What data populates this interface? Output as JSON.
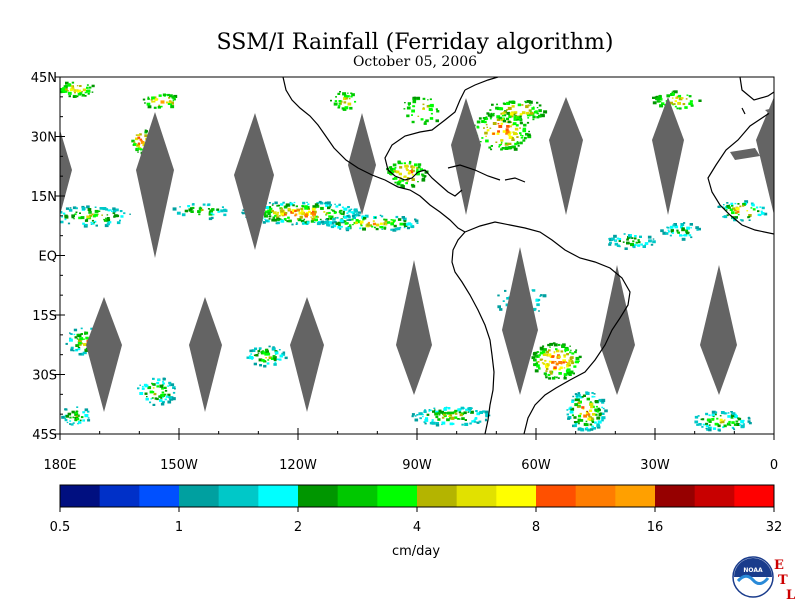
{
  "title": "SSM/I Rainfall (Ferriday algorithm)",
  "subtitle": "October 05, 2006",
  "map": {
    "lon_range": [
      -180,
      0
    ],
    "lat_range": [
      -45,
      45
    ],
    "lat_ticks": [
      {
        "value": 45,
        "label": "45N"
      },
      {
        "value": 30,
        "label": "30N"
      },
      {
        "value": 15,
        "label": "15N"
      },
      {
        "value": 0,
        "label": "EQ"
      },
      {
        "value": -15,
        "label": "15S"
      },
      {
        "value": -30,
        "label": "30S"
      },
      {
        "value": -45,
        "label": "45S"
      }
    ],
    "lon_ticks": [
      {
        "value": -180,
        "label": "180E"
      },
      {
        "value": -150,
        "label": "150W"
      },
      {
        "value": -120,
        "label": "120W"
      },
      {
        "value": -90,
        "label": "90W"
      },
      {
        "value": -60,
        "label": "60W"
      },
      {
        "value": -30,
        "label": "30W"
      },
      {
        "value": 0,
        "label": "0"
      }
    ],
    "no_data_color": "#646464",
    "coast_color": "#000000"
  },
  "colorbar": {
    "unit": "cm/day",
    "colors": [
      "#000f80",
      "#0030c8",
      "#0050ff",
      "#00a0a0",
      "#00c8c8",
      "#00ffff",
      "#009600",
      "#00c800",
      "#00ff00",
      "#b4b400",
      "#e1e100",
      "#ffff00",
      "#ff5000",
      "#ff7d00",
      "#ffa000",
      "#960000",
      "#c80000",
      "#ff0000"
    ],
    "tick_labels": [
      "0.5",
      "1",
      "2",
      "4",
      "8",
      "16",
      "32"
    ]
  },
  "logo": {
    "name": "NOAA",
    "etl_letters": [
      "E",
      "T",
      "L"
    ]
  }
}
